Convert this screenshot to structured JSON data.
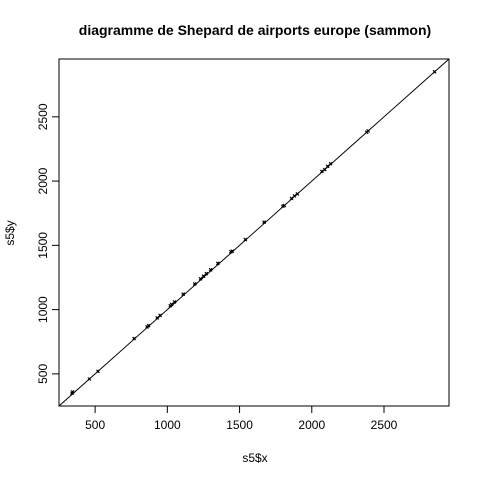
{
  "chart_data": {
    "type": "scatter",
    "title": "diagramme de Shepard de airports europe (sammon)",
    "xlabel": "s5$x",
    "ylabel": "s5$y",
    "xlim": [
      250,
      2950
    ],
    "ylim": [
      250,
      2950
    ],
    "xticks": [
      500,
      1000,
      1500,
      2000,
      2500
    ],
    "yticks": [
      500,
      1000,
      1500,
      2000,
      2500
    ],
    "xtick_labels": [
      "500",
      "1000",
      "1500",
      "2000",
      "2500"
    ],
    "ytick_labels": [
      "500",
      "1000",
      "1500",
      "2000",
      "2500"
    ],
    "grid": false,
    "reference_line": {
      "slope": 1,
      "intercept": 0
    },
    "point_color": "#000000",
    "series": [
      {
        "points": [
          [
            340,
            350
          ],
          [
            345,
            360
          ],
          [
            460,
            460
          ],
          [
            520,
            520
          ],
          [
            770,
            775
          ],
          [
            860,
            865
          ],
          [
            870,
            875
          ],
          [
            930,
            935
          ],
          [
            950,
            955
          ],
          [
            1020,
            1030
          ],
          [
            1030,
            1040
          ],
          [
            1050,
            1060
          ],
          [
            1110,
            1120
          ],
          [
            1190,
            1200
          ],
          [
            1230,
            1240
          ],
          [
            1250,
            1260
          ],
          [
            1270,
            1280
          ],
          [
            1300,
            1310
          ],
          [
            1350,
            1360
          ],
          [
            1440,
            1450
          ],
          [
            1450,
            1455
          ],
          [
            1540,
            1545
          ],
          [
            1670,
            1680
          ],
          [
            1800,
            1805
          ],
          [
            1810,
            1810
          ],
          [
            1860,
            1865
          ],
          [
            1880,
            1885
          ],
          [
            1900,
            1900
          ],
          [
            2070,
            2075
          ],
          [
            2090,
            2090
          ],
          [
            2110,
            2115
          ],
          [
            2130,
            2135
          ],
          [
            2380,
            2380
          ],
          [
            2390,
            2390
          ],
          [
            2850,
            2850
          ]
        ]
      }
    ]
  }
}
